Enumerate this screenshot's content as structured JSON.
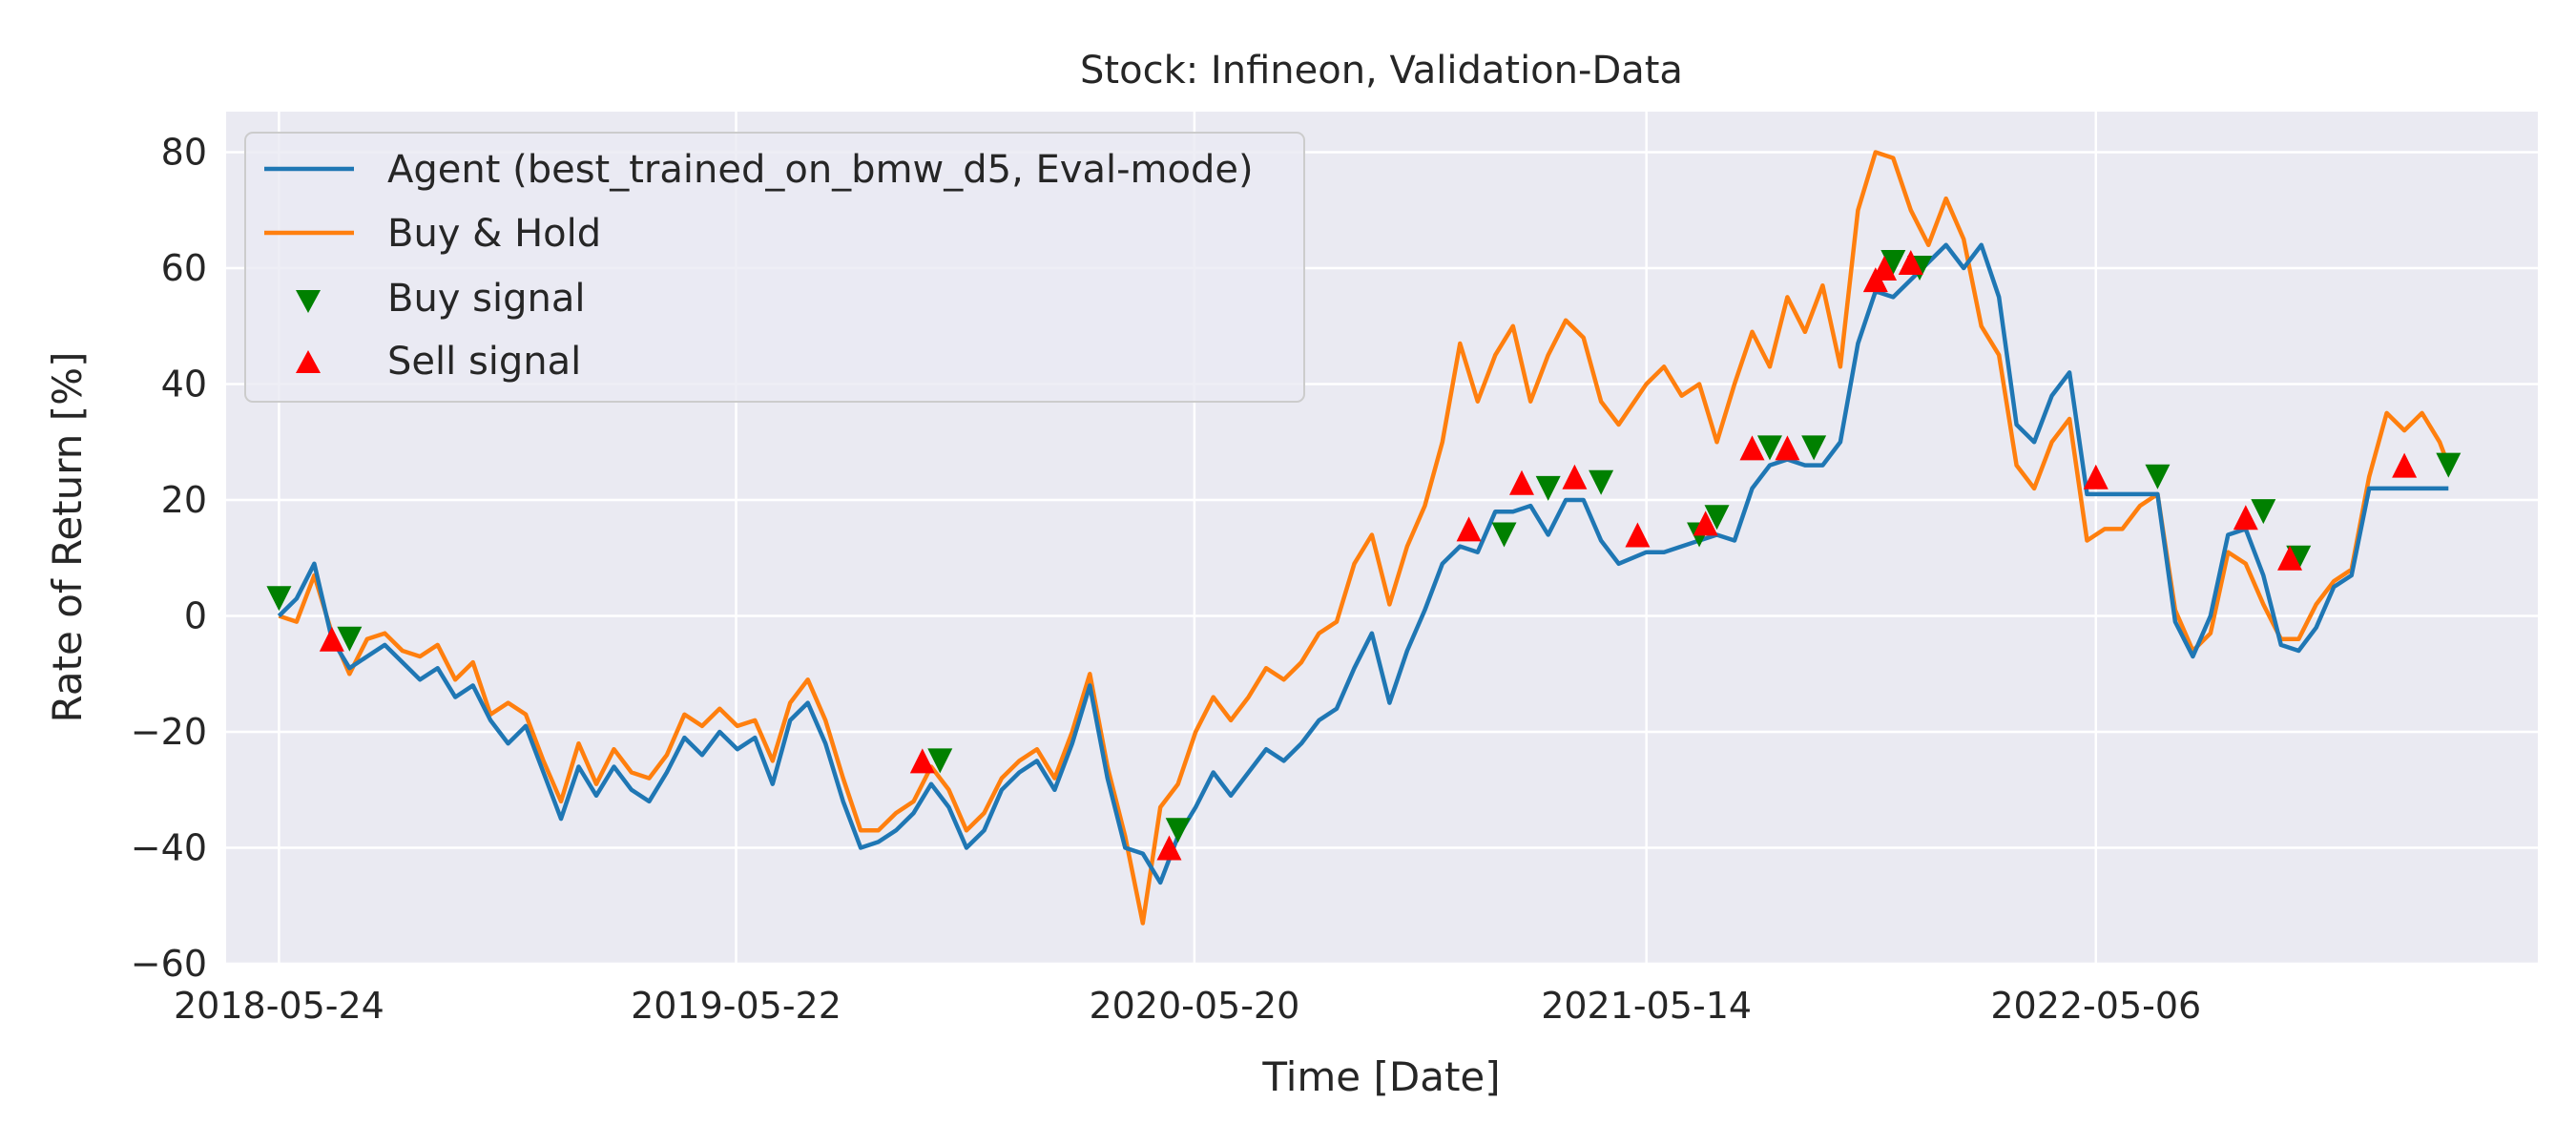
{
  "chart_data": {
    "type": "line",
    "title": "Stock: Infineon, Validation-Data",
    "xlabel": "Time [Date]",
    "ylabel": "Rate of Return [%]",
    "xlim": [
      "2018-04-12",
      "2023-04-22"
    ],
    "ylim": [
      -60,
      87
    ],
    "xticks": [
      "2018-05-24",
      "2019-05-22",
      "2020-05-20",
      "2021-05-14",
      "2022-05-06"
    ],
    "yticks": [
      -60,
      -40,
      -20,
      0,
      20,
      40,
      60,
      80
    ],
    "yticks_labels": [
      "−60",
      "−40",
      "−20",
      "0",
      "20",
      "40",
      "60",
      "80"
    ],
    "grid": true,
    "legend_position": "top-left",
    "colors": {
      "background": "#eaeaf2",
      "grid": "#ffffff",
      "agent": "#1f77b4",
      "buy_hold": "#ff7f0e",
      "buy_signal": "#008000",
      "sell_signal": "#ff0000"
    },
    "series": [
      {
        "name": "Agent (best_trained_on_bmw_d5, Eval-mode)",
        "points": [
          [
            "2018-05-24",
            0
          ],
          [
            "2018-06-07",
            3
          ],
          [
            "2018-06-21",
            9
          ],
          [
            "2018-07-05",
            -4
          ],
          [
            "2018-07-19",
            -9
          ],
          [
            "2018-08-02",
            -7
          ],
          [
            "2018-08-16",
            -5
          ],
          [
            "2018-08-30",
            -8
          ],
          [
            "2018-09-13",
            -11
          ],
          [
            "2018-09-27",
            -9
          ],
          [
            "2018-10-11",
            -14
          ],
          [
            "2018-10-25",
            -12
          ],
          [
            "2018-11-08",
            -18
          ],
          [
            "2018-11-22",
            -22
          ],
          [
            "2018-12-06",
            -19
          ],
          [
            "2018-12-20",
            -27
          ],
          [
            "2019-01-03",
            -35
          ],
          [
            "2019-01-17",
            -26
          ],
          [
            "2019-01-31",
            -31
          ],
          [
            "2019-02-14",
            -26
          ],
          [
            "2019-02-28",
            -30
          ],
          [
            "2019-03-14",
            -32
          ],
          [
            "2019-03-28",
            -27
          ],
          [
            "2019-04-11",
            -21
          ],
          [
            "2019-04-25",
            -24
          ],
          [
            "2019-05-09",
            -20
          ],
          [
            "2019-05-23",
            -23
          ],
          [
            "2019-06-06",
            -21
          ],
          [
            "2019-06-20",
            -29
          ],
          [
            "2019-07-04",
            -18
          ],
          [
            "2019-07-18",
            -15
          ],
          [
            "2019-08-01",
            -22
          ],
          [
            "2019-08-15",
            -32
          ],
          [
            "2019-08-29",
            -40
          ],
          [
            "2019-09-12",
            -39
          ],
          [
            "2019-09-26",
            -37
          ],
          [
            "2019-10-10",
            -34
          ],
          [
            "2019-10-24",
            -29
          ],
          [
            "2019-11-07",
            -33
          ],
          [
            "2019-11-21",
            -40
          ],
          [
            "2019-12-05",
            -37
          ],
          [
            "2019-12-19",
            -30
          ],
          [
            "2020-01-02",
            -27
          ],
          [
            "2020-01-16",
            -25
          ],
          [
            "2020-01-30",
            -30
          ],
          [
            "2020-02-13",
            -22
          ],
          [
            "2020-02-27",
            -12
          ],
          [
            "2020-03-12",
            -28
          ],
          [
            "2020-03-26",
            -40
          ],
          [
            "2020-04-09",
            -41
          ],
          [
            "2020-04-23",
            -46
          ],
          [
            "2020-05-07",
            -38
          ],
          [
            "2020-05-21",
            -33
          ],
          [
            "2020-06-04",
            -27
          ],
          [
            "2020-06-18",
            -31
          ],
          [
            "2020-07-02",
            -27
          ],
          [
            "2020-07-16",
            -23
          ],
          [
            "2020-07-30",
            -25
          ],
          [
            "2020-08-13",
            -22
          ],
          [
            "2020-08-27",
            -18
          ],
          [
            "2020-09-10",
            -16
          ],
          [
            "2020-09-24",
            -9
          ],
          [
            "2020-10-08",
            -3
          ],
          [
            "2020-10-22",
            -15
          ],
          [
            "2020-11-05",
            -6
          ],
          [
            "2020-11-19",
            1
          ],
          [
            "2020-12-03",
            9
          ],
          [
            "2020-12-17",
            12
          ],
          [
            "2020-12-31",
            11
          ],
          [
            "2021-01-14",
            18
          ],
          [
            "2021-01-28",
            18
          ],
          [
            "2021-02-11",
            19
          ],
          [
            "2021-02-25",
            14
          ],
          [
            "2021-03-11",
            20
          ],
          [
            "2021-03-25",
            20
          ],
          [
            "2021-04-08",
            13
          ],
          [
            "2021-04-22",
            9
          ],
          [
            "2021-05-14",
            11
          ],
          [
            "2021-05-28",
            11
          ],
          [
            "2021-06-11",
            12
          ],
          [
            "2021-06-25",
            13
          ],
          [
            "2021-07-09",
            14
          ],
          [
            "2021-07-23",
            13
          ],
          [
            "2021-08-06",
            22
          ],
          [
            "2021-08-20",
            26
          ],
          [
            "2021-09-03",
            27
          ],
          [
            "2021-09-17",
            26
          ],
          [
            "2021-10-01",
            26
          ],
          [
            "2021-10-15",
            30
          ],
          [
            "2021-10-29",
            47
          ],
          [
            "2021-11-12",
            56
          ],
          [
            "2021-11-26",
            55
          ],
          [
            "2021-12-10",
            58
          ],
          [
            "2021-12-24",
            61
          ],
          [
            "2022-01-07",
            64
          ],
          [
            "2022-01-21",
            60
          ],
          [
            "2022-02-04",
            64
          ],
          [
            "2022-02-18",
            55
          ],
          [
            "2022-03-04",
            33
          ],
          [
            "2022-03-18",
            30
          ],
          [
            "2022-04-01",
            38
          ],
          [
            "2022-04-15",
            42
          ],
          [
            "2022-04-29",
            21
          ],
          [
            "2022-05-13",
            21
          ],
          [
            "2022-05-27",
            21
          ],
          [
            "2022-06-10",
            21
          ],
          [
            "2022-06-24",
            21
          ],
          [
            "2022-07-08",
            -1
          ],
          [
            "2022-07-22",
            -7
          ],
          [
            "2022-08-05",
            0
          ],
          [
            "2022-08-19",
            14
          ],
          [
            "2022-09-02",
            15
          ],
          [
            "2022-09-16",
            7
          ],
          [
            "2022-09-30",
            -5
          ],
          [
            "2022-10-14",
            -6
          ],
          [
            "2022-10-28",
            -2
          ],
          [
            "2022-11-11",
            5
          ],
          [
            "2022-11-25",
            7
          ],
          [
            "2022-12-09",
            22
          ],
          [
            "2022-12-23",
            22
          ],
          [
            "2023-01-06",
            22
          ],
          [
            "2023-01-20",
            22
          ],
          [
            "2023-02-03",
            22
          ],
          [
            "2023-02-10",
            22
          ]
        ]
      },
      {
        "name": "Buy & Hold",
        "points": [
          [
            "2018-05-24",
            0
          ],
          [
            "2018-06-07",
            -1
          ],
          [
            "2018-06-21",
            7
          ],
          [
            "2018-07-05",
            -3
          ],
          [
            "2018-07-19",
            -10
          ],
          [
            "2018-08-02",
            -4
          ],
          [
            "2018-08-16",
            -3
          ],
          [
            "2018-08-30",
            -6
          ],
          [
            "2018-09-13",
            -7
          ],
          [
            "2018-09-27",
            -5
          ],
          [
            "2018-10-11",
            -11
          ],
          [
            "2018-10-25",
            -8
          ],
          [
            "2018-11-08",
            -17
          ],
          [
            "2018-11-22",
            -15
          ],
          [
            "2018-12-06",
            -17
          ],
          [
            "2018-12-20",
            -25
          ],
          [
            "2019-01-03",
            -32
          ],
          [
            "2019-01-17",
            -22
          ],
          [
            "2019-01-31",
            -29
          ],
          [
            "2019-02-14",
            -23
          ],
          [
            "2019-02-28",
            -27
          ],
          [
            "2019-03-14",
            -28
          ],
          [
            "2019-03-28",
            -24
          ],
          [
            "2019-04-11",
            -17
          ],
          [
            "2019-04-25",
            -19
          ],
          [
            "2019-05-09",
            -16
          ],
          [
            "2019-05-23",
            -19
          ],
          [
            "2019-06-06",
            -18
          ],
          [
            "2019-06-20",
            -25
          ],
          [
            "2019-07-04",
            -15
          ],
          [
            "2019-07-18",
            -11
          ],
          [
            "2019-08-01",
            -18
          ],
          [
            "2019-08-15",
            -28
          ],
          [
            "2019-08-29",
            -37
          ],
          [
            "2019-09-12",
            -37
          ],
          [
            "2019-09-26",
            -34
          ],
          [
            "2019-10-10",
            -32
          ],
          [
            "2019-10-24",
            -26
          ],
          [
            "2019-11-07",
            -30
          ],
          [
            "2019-11-21",
            -37
          ],
          [
            "2019-12-05",
            -34
          ],
          [
            "2019-12-19",
            -28
          ],
          [
            "2020-01-02",
            -25
          ],
          [
            "2020-01-16",
            -23
          ],
          [
            "2020-01-30",
            -28
          ],
          [
            "2020-02-13",
            -20
          ],
          [
            "2020-02-27",
            -10
          ],
          [
            "2020-03-12",
            -26
          ],
          [
            "2020-03-26",
            -38
          ],
          [
            "2020-04-09",
            -53
          ],
          [
            "2020-04-23",
            -33
          ],
          [
            "2020-05-07",
            -29
          ],
          [
            "2020-05-21",
            -20
          ],
          [
            "2020-06-04",
            -14
          ],
          [
            "2020-06-18",
            -18
          ],
          [
            "2020-07-02",
            -14
          ],
          [
            "2020-07-16",
            -9
          ],
          [
            "2020-07-30",
            -11
          ],
          [
            "2020-08-13",
            -8
          ],
          [
            "2020-08-27",
            -3
          ],
          [
            "2020-09-10",
            -1
          ],
          [
            "2020-09-24",
            9
          ],
          [
            "2020-10-08",
            14
          ],
          [
            "2020-10-22",
            2
          ],
          [
            "2020-11-05",
            12
          ],
          [
            "2020-11-19",
            19
          ],
          [
            "2020-12-03",
            30
          ],
          [
            "2020-12-17",
            47
          ],
          [
            "2020-12-31",
            37
          ],
          [
            "2021-01-14",
            45
          ],
          [
            "2021-01-28",
            50
          ],
          [
            "2021-02-11",
            37
          ],
          [
            "2021-02-25",
            45
          ],
          [
            "2021-03-11",
            51
          ],
          [
            "2021-03-25",
            48
          ],
          [
            "2021-04-08",
            37
          ],
          [
            "2021-04-22",
            33
          ],
          [
            "2021-05-14",
            40
          ],
          [
            "2021-05-28",
            43
          ],
          [
            "2021-06-11",
            38
          ],
          [
            "2021-06-25",
            40
          ],
          [
            "2021-07-09",
            30
          ],
          [
            "2021-07-23",
            40
          ],
          [
            "2021-08-06",
            49
          ],
          [
            "2021-08-20",
            43
          ],
          [
            "2021-09-03",
            55
          ],
          [
            "2021-09-17",
            49
          ],
          [
            "2021-10-01",
            57
          ],
          [
            "2021-10-15",
            43
          ],
          [
            "2021-10-29",
            70
          ],
          [
            "2021-11-12",
            80
          ],
          [
            "2021-11-26",
            79
          ],
          [
            "2021-12-10",
            70
          ],
          [
            "2021-12-24",
            64
          ],
          [
            "2022-01-07",
            72
          ],
          [
            "2022-01-21",
            65
          ],
          [
            "2022-02-04",
            50
          ],
          [
            "2022-02-18",
            45
          ],
          [
            "2022-03-04",
            26
          ],
          [
            "2022-03-18",
            22
          ],
          [
            "2022-04-01",
            30
          ],
          [
            "2022-04-15",
            34
          ],
          [
            "2022-04-29",
            13
          ],
          [
            "2022-05-13",
            15
          ],
          [
            "2022-05-27",
            15
          ],
          [
            "2022-06-10",
            19
          ],
          [
            "2022-06-24",
            21
          ],
          [
            "2022-07-08",
            1
          ],
          [
            "2022-07-22",
            -6
          ],
          [
            "2022-08-05",
            -3
          ],
          [
            "2022-08-19",
            11
          ],
          [
            "2022-09-02",
            9
          ],
          [
            "2022-09-16",
            2
          ],
          [
            "2022-09-30",
            -4
          ],
          [
            "2022-10-14",
            -4
          ],
          [
            "2022-10-28",
            2
          ],
          [
            "2022-11-11",
            6
          ],
          [
            "2022-11-25",
            8
          ],
          [
            "2022-12-09",
            24
          ],
          [
            "2022-12-23",
            35
          ],
          [
            "2023-01-06",
            32
          ],
          [
            "2023-01-20",
            35
          ],
          [
            "2023-02-03",
            30
          ],
          [
            "2023-02-10",
            26
          ]
        ]
      },
      {
        "name": "Buy signal",
        "marker": "triangle-down",
        "points": [
          [
            "2018-05-24",
            3
          ],
          [
            "2018-07-19",
            -4
          ],
          [
            "2019-10-31",
            -25
          ],
          [
            "2020-05-07",
            -37
          ],
          [
            "2021-01-21",
            14
          ],
          [
            "2021-02-25",
            22
          ],
          [
            "2021-04-08",
            23
          ],
          [
            "2021-06-25",
            14
          ],
          [
            "2021-07-09",
            17
          ],
          [
            "2021-08-20",
            29
          ],
          [
            "2021-09-24",
            29
          ],
          [
            "2021-11-26",
            61
          ],
          [
            "2021-12-17",
            60
          ],
          [
            "2022-06-24",
            24
          ],
          [
            "2022-09-16",
            18
          ],
          [
            "2022-10-14",
            10
          ],
          [
            "2023-02-10",
            26
          ]
        ]
      },
      {
        "name": "Sell signal",
        "marker": "triangle-up",
        "points": [
          [
            "2018-07-05",
            -4
          ],
          [
            "2019-10-17",
            -25
          ],
          [
            "2020-04-30",
            -40
          ],
          [
            "2020-12-24",
            15
          ],
          [
            "2021-02-04",
            23
          ],
          [
            "2021-03-18",
            24
          ],
          [
            "2021-05-07",
            14
          ],
          [
            "2021-06-30",
            16
          ],
          [
            "2021-08-06",
            29
          ],
          [
            "2021-09-03",
            29
          ],
          [
            "2021-11-12",
            58
          ],
          [
            "2021-11-19",
            60
          ],
          [
            "2021-12-10",
            61
          ],
          [
            "2022-05-06",
            24
          ],
          [
            "2022-09-02",
            17
          ],
          [
            "2022-10-07",
            10
          ],
          [
            "2023-01-06",
            26
          ]
        ]
      }
    ]
  }
}
